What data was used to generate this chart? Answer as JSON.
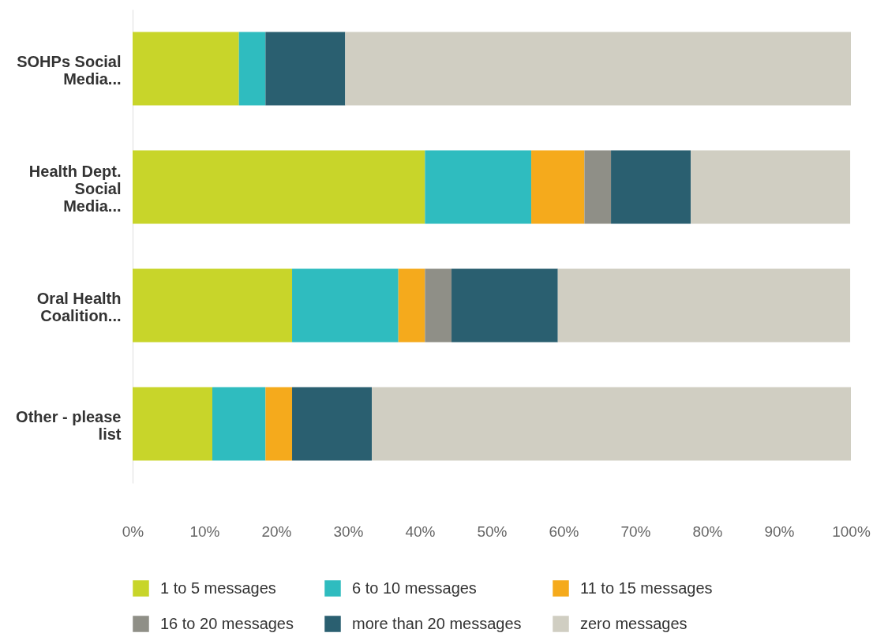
{
  "chart_data": {
    "type": "bar",
    "orientation": "horizontal",
    "stacked": true,
    "categories": [
      "SOHPs Social Media...",
      "Health Dept. Social Media...",
      "Oral Health Coalition...",
      "Other - please list"
    ],
    "series": [
      {
        "name": "1 to 5 messages",
        "color": "#c8d52a",
        "values": [
          14.8,
          40.7,
          22.2,
          11.1
        ]
      },
      {
        "name": "6 to 10 messages",
        "color": "#2fbcbf",
        "values": [
          3.7,
          14.8,
          14.8,
          7.4
        ]
      },
      {
        "name": "11 to 15 messages",
        "color": "#f5aa1c",
        "values": [
          0,
          7.4,
          3.7,
          3.7
        ]
      },
      {
        "name": "16 to 20 messages",
        "color": "#8f8f87",
        "values": [
          0,
          3.7,
          3.7,
          0
        ]
      },
      {
        "name": "more than 20 messages",
        "color": "#2a5f70",
        "values": [
          11.1,
          11.1,
          14.8,
          11.1
        ]
      },
      {
        "name": "zero messages",
        "color": "#d0cec2",
        "values": [
          70.4,
          22.2,
          40.7,
          66.7
        ]
      }
    ],
    "xlim": [
      0,
      100
    ],
    "xticks": [
      {
        "value": 0,
        "label": "0%"
      },
      {
        "value": 10,
        "label": "10%"
      },
      {
        "value": 20,
        "label": "20%"
      },
      {
        "value": 30,
        "label": "30%"
      },
      {
        "value": 40,
        "label": "40%"
      },
      {
        "value": 50,
        "label": "50%"
      },
      {
        "value": 60,
        "label": "60%"
      },
      {
        "value": 70,
        "label": "70%"
      },
      {
        "value": 80,
        "label": "80%"
      },
      {
        "value": 90,
        "label": "90%"
      },
      {
        "value": 100,
        "label": "100%"
      }
    ],
    "legend": "bottom",
    "grid": false
  }
}
